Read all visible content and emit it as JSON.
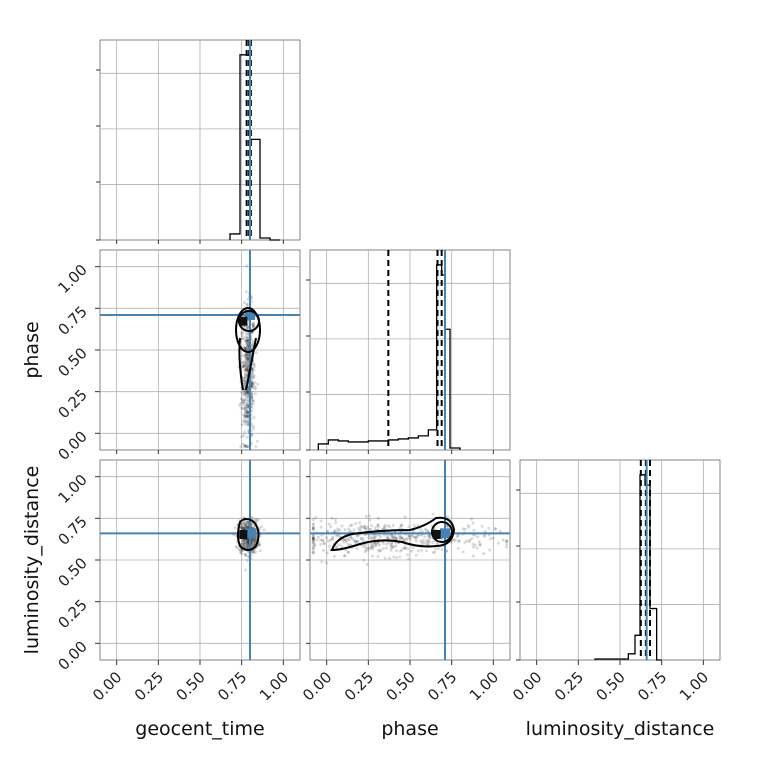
{
  "chart_data": {
    "type": "corner",
    "parameters": [
      "geocent_time",
      "phase",
      "luminosity_distance"
    ],
    "range": [
      -0.1,
      1.1
    ],
    "tick_values": [
      0.0,
      0.25,
      0.5,
      0.75,
      1.0
    ],
    "tick_labels": [
      "0.00",
      "0.25",
      "0.50",
      "0.75",
      "1.00"
    ],
    "truths": {
      "geocent_time": 0.8,
      "phase": 0.71,
      "luminosity_distance": 0.66
    },
    "truth_color": "#4682b4",
    "quantiles": {
      "geocent_time": [
        0.78,
        0.795,
        0.805
      ],
      "phase": [
        0.37,
        0.665,
        0.69
      ],
      "luminosity_distance": [
        0.625,
        0.655,
        0.68
      ]
    },
    "histograms": {
      "geocent_time": {
        "bins": [
          0.68,
          0.74,
          0.8,
          0.86,
          0.92,
          0.98
        ],
        "counts": [
          0.03,
          0.92,
          0.5,
          0.01,
          0.0
        ]
      },
      "phase": {
        "bins": [
          -0.05,
          0.01,
          0.07,
          0.13,
          0.19,
          0.25,
          0.31,
          0.37,
          0.43,
          0.49,
          0.55,
          0.61,
          0.66,
          0.69,
          0.71,
          0.74,
          0.8
        ],
        "counts": [
          0.03,
          0.05,
          0.045,
          0.04,
          0.04,
          0.045,
          0.045,
          0.05,
          0.055,
          0.06,
          0.07,
          0.1,
          0.92,
          0.87,
          0.6,
          0.01
        ]
      },
      "luminosity_distance": {
        "bins": [
          0.35,
          0.55,
          0.59,
          0.62,
          0.65,
          0.68,
          0.72,
          0.75
        ],
        "counts": [
          0.005,
          0.03,
          0.12,
          0.9,
          0.85,
          0.25,
          0.0
        ]
      }
    },
    "scatter_clouds": [
      {
        "x_param": "geocent_time",
        "y_param": "phase",
        "center": [
          0.79,
          0.35
        ],
        "spread": [
          0.02,
          0.2
        ]
      },
      {
        "x_param": "geocent_time",
        "y_param": "luminosity_distance",
        "center": [
          0.79,
          0.64
        ],
        "spread": [
          0.03,
          0.05
        ]
      },
      {
        "x_param": "phase",
        "y_param": "luminosity_distance",
        "center": [
          0.38,
          0.63
        ],
        "spread": [
          0.3,
          0.05
        ]
      }
    ]
  }
}
